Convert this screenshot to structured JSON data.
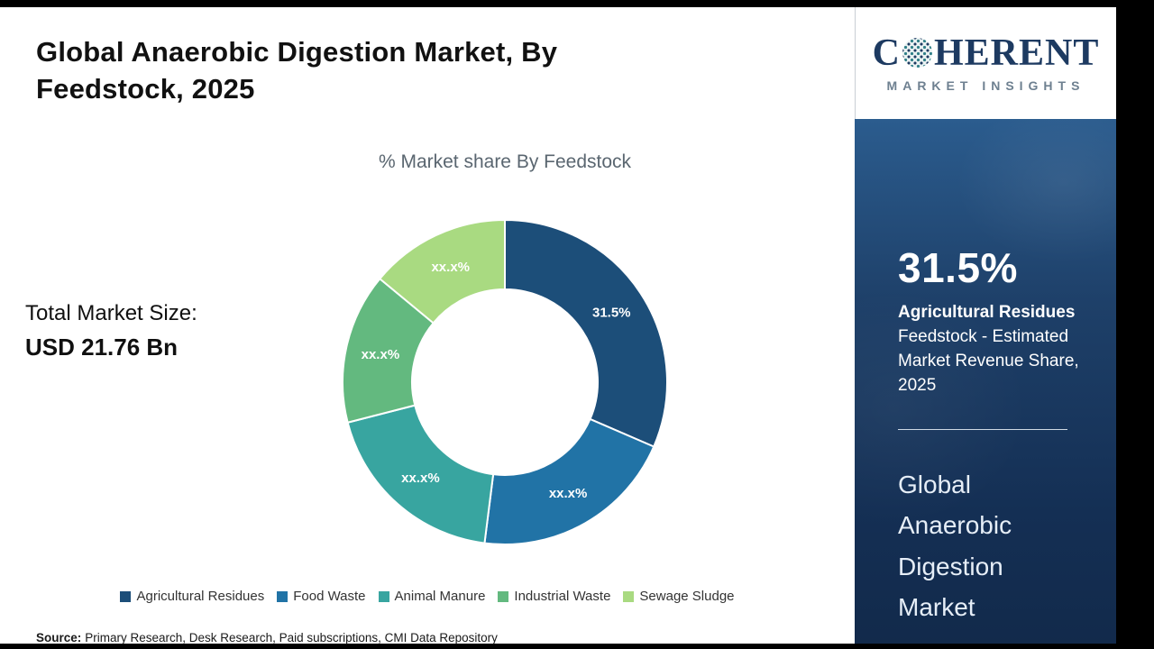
{
  "header": {
    "title": "Global Anaerobic Digestion Market, By Feedstock, 2025"
  },
  "left_panel": {
    "chart_subtitle": "% Market share By Feedstock",
    "total_label": "Total Market Size:",
    "total_value": "USD 21.76 Bn",
    "source_label": "Source:",
    "source_text": "Primary Research, Desk Research, Paid subscriptions, CMI Data Repository"
  },
  "brand": {
    "word_start": "C",
    "word_end": "HERENT",
    "tagline": "MARKET INSIGHTS"
  },
  "side_panel": {
    "stat_value": "31.5%",
    "stat_label_bold": "Agricultural Residues",
    "stat_label_rest": "Feedstock - Estimated Market Revenue Share, 2025",
    "market_name": "Global Anaerobic Digestion Market"
  },
  "chart_data": {
    "type": "pie",
    "subtype": "donut",
    "title": "% Market share By Feedstock",
    "categories": [
      "Agricultural Residues",
      "Food Waste",
      "Animal Manure",
      "Industrial Waste",
      "Sewage Sludge"
    ],
    "values": [
      31.5,
      20.5,
      19.0,
      15.0,
      14.0
    ],
    "display_labels": [
      "31.5%",
      "xx.x%",
      "xx.x%",
      "xx.x%",
      "xx.x%"
    ],
    "colors": [
      "#1c4e79",
      "#2173a6",
      "#38a5a0",
      "#63b97f",
      "#a9da81"
    ],
    "legend_position": "bottom",
    "start_angle_deg": 0,
    "direction": "clockwise",
    "inner_radius_ratio": 0.57,
    "value_note": "Only the 31.5% segment is labeled on the chart; other segment labels are masked as xx.x% and their values are estimated from arc sizes."
  }
}
